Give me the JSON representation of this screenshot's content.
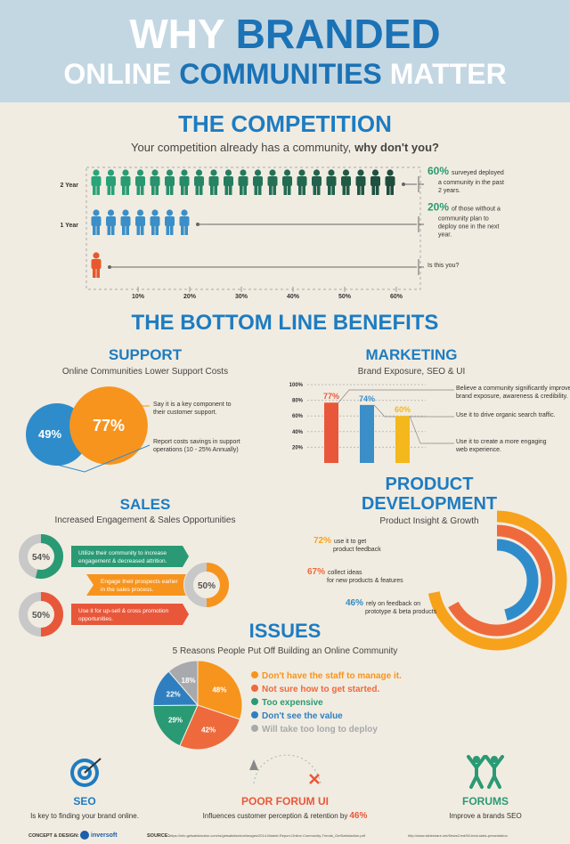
{
  "header": {
    "line1": [
      "WHY",
      "BRANDED"
    ],
    "line2": [
      "ONLINE",
      "COMMUNITIES",
      "MATTER"
    ]
  },
  "competition": {
    "title": "THE COMPETITION",
    "subtitle": "Your competition already has a community,",
    "subtitle_bold": "why don't you?",
    "rows": [
      {
        "label": "2 Year",
        "value": 60,
        "value_label": "60%",
        "note": [
          "surveyed deployed",
          "a community in the past",
          "2 years."
        ]
      },
      {
        "label": "1 Year",
        "value": 20,
        "value_label": "20%",
        "note": [
          "of those without a",
          "community plan to",
          "deploy one in the next",
          "year."
        ]
      },
      {
        "note": [
          "Is this you?"
        ]
      }
    ],
    "xticks": [
      {
        "value": 10,
        "label": "10%"
      },
      {
        "value": 20,
        "label": "20%"
      },
      {
        "value": 30,
        "label": "30%"
      },
      {
        "value": 40,
        "label": "40%"
      },
      {
        "value": 50,
        "label": "50%"
      },
      {
        "value": 60,
        "label": "60%"
      }
    ]
  },
  "benefits_title": "THE BOTTOM LINE BENEFITS",
  "support": {
    "title": "SUPPORT",
    "subtitle": "Online Communities Lower Support Costs",
    "items": [
      {
        "value": 77,
        "label": "77%",
        "color": "#f7941d",
        "note": [
          "Say it is a key component to",
          "their customer support."
        ]
      },
      {
        "value": 49,
        "label": "49%",
        "color": "#2f8ccb",
        "note": [
          "Report costs savings in support",
          "operations (10 - 25% Annually)"
        ]
      }
    ]
  },
  "marketing": {
    "title": "MARKETING",
    "subtitle": "Brand Exposure, SEO & UI",
    "ylim": [
      0,
      100
    ],
    "yticks": [
      {
        "value": 20,
        "label": "20%"
      },
      {
        "value": 40,
        "label": "40%"
      },
      {
        "value": 60,
        "label": "60%"
      },
      {
        "value": 80,
        "label": "80%"
      },
      {
        "value": 100,
        "label": "100%"
      }
    ],
    "items": [
      {
        "value": 77,
        "label": "77%",
        "color": "#e9573a",
        "note": [
          "Believe a community significantly improves",
          "brand exposure, awareness & credibility."
        ]
      },
      {
        "value": 74,
        "label": "74%",
        "color": "#3a8fc8",
        "note": [
          "Use it to drive organic search traffic."
        ]
      },
      {
        "value": 60,
        "label": "60%",
        "color": "#f4b81c",
        "note": [
          "Use it to create a more engaging",
          "web experience."
        ]
      }
    ]
  },
  "sales": {
    "title": "SALES",
    "subtitle": "Increased Engagement & Sales Opportunities",
    "items": [
      {
        "value": 54,
        "label": "54%",
        "color": "#2a9a74",
        "note": [
          "Utilize their community to increase",
          "engagement & decreased attrition."
        ]
      },
      {
        "value": 50,
        "label": "50%",
        "color": "#f7941d",
        "note": [
          "Engage their prospects earlier",
          "in the sales process."
        ]
      },
      {
        "value": 50,
        "label": "50%",
        "color": "#e9573a",
        "note": [
          "Use it for up-sell & cross promotion",
          "opportunities."
        ]
      }
    ]
  },
  "product": {
    "title": [
      "PRODUCT",
      "DEVELOPMENT"
    ],
    "subtitle": "Product Insight & Growth",
    "items": [
      {
        "value": 72,
        "label": "72%",
        "color": "#f7a21b",
        "note": [
          "use it to get",
          "product feedback"
        ]
      },
      {
        "value": 67,
        "label": "67%",
        "color": "#ee6a3c",
        "note": [
          "collect ideas",
          "for new products & features"
        ]
      },
      {
        "value": 46,
        "label": "46%",
        "color": "#2f8ccb",
        "note": [
          "rely on feedback on",
          "prototype & beta products"
        ]
      }
    ]
  },
  "issues": {
    "title": "ISSUES",
    "subtitle": "5 Reasons People Put Off Building an Online Community",
    "items": [
      {
        "value": 48,
        "label": "48%",
        "color": "#f7941d",
        "text": "Don't have the staff to manage it."
      },
      {
        "value": 42,
        "label": "42%",
        "color": "#ee6a3c",
        "text": "Not sure how to get started."
      },
      {
        "value": 29,
        "label": "29%",
        "color": "#2a9a74",
        "text": "Too expensive"
      },
      {
        "value": 22,
        "label": "22%",
        "color": "#2f7fc0",
        "text": "Don't see the value"
      },
      {
        "value": 18,
        "label": "18%",
        "color": "#a7a9ac",
        "text": "Will take too long to deploy"
      }
    ]
  },
  "footer": {
    "seo": {
      "title": "SEO",
      "text": "Is key to finding your brand online."
    },
    "forum": {
      "title": "POOR FORUM UI",
      "text": "Influences customer perception & retention by",
      "value": 46,
      "value_label": "46%"
    },
    "forums": {
      "title": "FORUMS",
      "text": "Improve a brands SEO"
    }
  },
  "credits": {
    "design_label": "CONCEPT & DESIGN:",
    "design": "inversoft",
    "source_label": "SOURCE:",
    "sources": [
      "https://info.getsatisfaction.com/rs/getsatisfaction/images/2014-Market-Report-Online-Community-Trends_GetSatisfaction.pdf",
      "http://www.slideshare.net/NewsCred/50-best-stats-presentation"
    ]
  }
}
